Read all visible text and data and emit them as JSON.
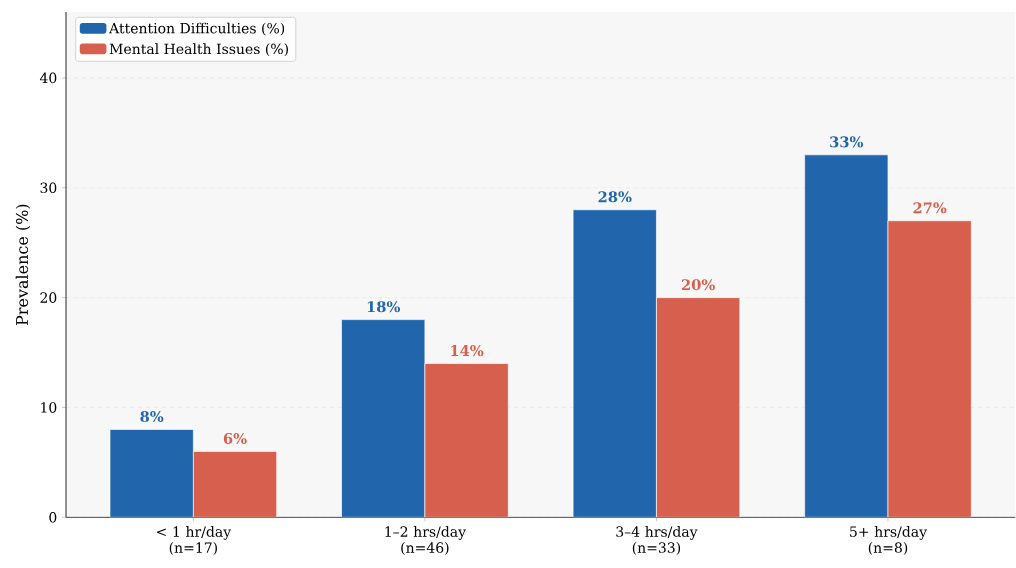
{
  "chart_data": {
    "type": "bar",
    "ylabel": "Prevalence (%)",
    "categories": [
      "< 1 hr/day (n=17)",
      "1–2 hrs/day (n=46)",
      "3–4 hrs/day (n=33)",
      "5+ hrs/day (n=8)"
    ],
    "series": [
      {
        "name": "Attention Difficulties (%)",
        "color": "#2166ac",
        "values": [
          8,
          18,
          28,
          33
        ],
        "value_labels": [
          "8%",
          "18%",
          "28%",
          "33%"
        ]
      },
      {
        "name": "Mental Health Issues (%)",
        "color": "#d6604d",
        "values": [
          6,
          14,
          20,
          27
        ],
        "value_labels": [
          "6%",
          "14%",
          "20%",
          "27%"
        ]
      }
    ],
    "ylim": [
      0,
      46
    ],
    "yticks": [
      0,
      10,
      20,
      30,
      40
    ],
    "grid": "y",
    "legend": "top left"
  }
}
